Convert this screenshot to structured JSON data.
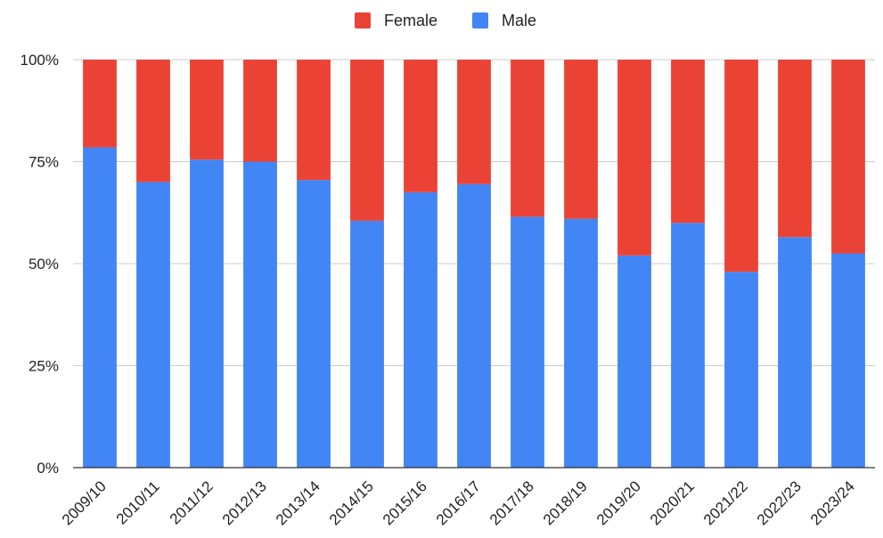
{
  "chart_data": {
    "type": "bar",
    "stacked": true,
    "normalized": true,
    "categories": [
      "2009/10",
      "2010/11",
      "2011/12",
      "2012/13",
      "2013/14",
      "2014/15",
      "2015/16",
      "2016/17",
      "2017/18",
      "2018/19",
      "2019/20",
      "2020/21",
      "2021/22",
      "2022/23",
      "2023/24"
    ],
    "series": [
      {
        "name": "Male",
        "color": "#4285f4",
        "values": [
          78.5,
          70.0,
          75.5,
          75.0,
          70.5,
          60.5,
          67.5,
          69.5,
          61.5,
          61.0,
          52.0,
          60.0,
          48.0,
          56.5,
          52.5
        ]
      },
      {
        "name": "Female",
        "color": "#ea4335",
        "values": [
          21.5,
          30.0,
          24.5,
          25.0,
          29.5,
          39.5,
          32.5,
          30.5,
          38.5,
          39.0,
          48.0,
          40.0,
          52.0,
          43.5,
          47.5
        ]
      }
    ],
    "y_ticks": [
      "0%",
      "25%",
      "50%",
      "75%",
      "100%"
    ],
    "ylim": [
      0,
      100
    ],
    "grid": true,
    "legend": {
      "placement": "top-center",
      "entries": [
        {
          "label": "Female",
          "color": "#ea4335"
        },
        {
          "label": "Male",
          "color": "#4285f4"
        }
      ]
    },
    "title": "",
    "xlabel": "",
    "ylabel": ""
  }
}
